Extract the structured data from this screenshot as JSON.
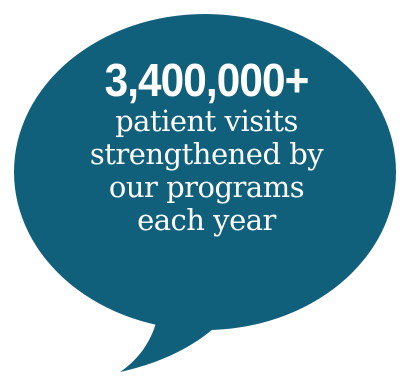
{
  "callout": {
    "headline": "3,400,000+",
    "lines": [
      "patient visits",
      "strengthened by",
      "our programs",
      "each year"
    ]
  },
  "colors": {
    "bubble_fill": "#105f7b",
    "text": "#ffffff",
    "background": "#ffffff"
  }
}
